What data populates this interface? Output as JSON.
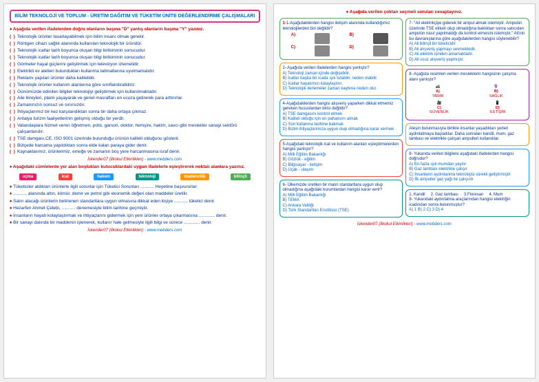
{
  "title": "BİLİM TEKNOLOJİ VE TOPLUM - ÜRETİM DAĞITIM VE TÜKETİM ÜNİTE DEĞERLENDİRME ÇALIŞMALARI",
  "footer_author": "İskender07 (İlkokul Etkinlikleri) -",
  "footer_link": "www.mebders.com",
  "tf_head": "Aşağıda verilen ifadelerden doğru olanların başına \"D\" yanlış olanların başına \"Y\" yazınız.",
  "tf": [
    "Teknolojik ürünler tasarlayabilmek için bilim insanı olmak gerekir.",
    "Röntgen cihazı sağlık alanında kullanılan teknolojik bir üründür.",
    "Teknolojik icatlar tarih boyunca oluşan bilgi birikiminin sonucudur.",
    "Teknolojik icatlar tarih boyunca oluşan bilgi birikiminin sonucudur.",
    "Görmeler hayal güçlerini geliştirmek için televizyon izlemelidir.",
    "Elektrikli ev aletleri bulundukları kullanma talimatlarına uyulmamalıdır.",
    "Reklamı yapılan ürünler daha kalitelidir.",
    "Teknolojik ürünler kullanım alanlarına göre sınıflandırabiliriz.",
    "Günümüzde edinilen bilgiler teknolojiyi geliştirmek için kullanılmaktadır.",
    "Aile bireyleri, planlı yaşayarak ve genel masrafları en ucuza getirerek para arttırırlar.",
    "Zamanınızın sonsuz ve sınırsızdır.",
    "İhtiyaçlarımız bir kez karşılandıktan sonra bir daha ortaya çıkmaz.",
    "Antalya turizm faaliyetlerinin gelişmiş olduğu bir yerdir.",
    "Vatandaşlara hizmet veren öğretmen, polis, garson, doktor, hemşire, hakim, savcı gibi meslekler sanayi sektörü çalışanlarıdır.",
    "TSE damgası,CE, ISO 9001 üzerinde bulunduğu ürünün kaliteli olduğunu gösterir.",
    "Bütçede harcama yapıldıktan sonra elde kalan paraya gider denir.",
    "Kaynaklarımız, ürünlerimiz, emeğe ve zamanın boş yere harcanmasına  israf  denir."
  ],
  "fill_head": "Aşağıdaki cümlelerde yer alan boşlukları kutucuklardaki uygun ifadelerle eşleştirerek noktalı alanlara yazınız.",
  "words": [
    "uçma",
    "icat",
    "hakem",
    "teknoloji",
    "madencilik",
    "bilinçli"
  ],
  "fills": [
    "Tüketiciler aldıkları ürünlerle ilgili sorunlar için Tüketici Sorunları ........... Heyetine başvururlar.",
    "........... alanında altın, kömür, demir ve petrol gibi ekonomik değeri olan maddeler üretilir.",
    "Satın alacağı ürünlerin belirlenen standartlara uygun olmasına dikkat eden kişiye ........... tüketici denir.",
    "Hezarfen Ahmet Çelebi, ........... denemesiyle bilim tarihine geçmiştir.",
    "İnsanların hayatı kolaylaştırmak ve ihtiyaçlarını gidermek için yeni ürünler ortaya çıkarmasına ............. denir.",
    "Bir sanayi dalında bir maddenin işlenerek,  kullanır hale gelmesiyle ilgili bilgi ve sürece ............. denir."
  ],
  "page2_head": "Aşağıda verilen çoktan seçmeli soruları cevaplayınız.",
  "q1": {
    "stem": "1-Aşağıdakilerden hangisi iletişim alanında kullandığımız teknolojilerden biri değildir?"
  },
  "q2": {
    "stem": "2- Aşağıda verilen ifadelerden hangisi yanlıştır?",
    "opts": [
      "A) Teknoloji zaman içinde değişebilir.",
      "B) İcatlar  başka bir icada ışık tutabilir, neden olabilir.",
      "C) İcatlar hayatımızı kolaylaştırır.",
      "D) Teknolojik ilerlemeler zaman kaybına neden olur."
    ]
  },
  "q3": {
    "stem": "4-Aşağıdakilerden hangisi alışveriş yaparken dikkat etmemiz gereken hususlardan birisi değildir?",
    "opts": [
      "A) TSE damgasını kontrol etmek",
      "B) Kaliteli olduğu için en pahalısını almak",
      "C) Son kullanma tarihine bakmak",
      "D) Bizim ihtiyaçlarımıza uygun olup olmadığına karar  vermek"
    ]
  },
  "q4": {
    "stem": "5-Aşağıdaki teknolojik icat ve kullanım alanları eşleştirmelerden hangisi yanlıştır?",
    "opts": [
      "A) Milli Eğitim Bakanlığı",
      "B) Gözlük - eğitim",
      "C) Bilgisayar  - iletişim",
      "D) Uçak - ulaşım"
    ]
  },
  "q5": {
    "stem": "6- Ülkemizde üretilen bir malın standartlara uygun olup olmadığına aşağıdaki kurumlardan hangisi karar verir?",
    "opts": [
      "A) Milli Eğitim Bakanlığı",
      "B) TEMA",
      "C) Ankara Valiliği",
      "D) Türk Standartları Enstitüsü (TSE)"
    ]
  },
  "q6": {
    "stem": "7- \"Ali elektrikçiye giderek bir ampul almak istemiştir. Ampulün üzerinde TSE etiketi olup olmadığına baktıktan sonra satıcıdan ampulün nasıl yapılmadığı da kontrol etmesini istemiştir.\" Ali'nin bu davranışlarına göre aşağıdakilerden hangisi söylenebilir?",
    "opts": [
      "A) Ali bilinçli bir tüketicidir.",
      "B) Ali alışveriş yapmayı sevmektedir.",
      "C) Ali elektrik işinden anlamaktadır.",
      "D) Ali ucuz alışveriş yapmıştır."
    ]
  },
  "q7": {
    "stem": "8- Aşağıda resimleri verilen mesleklerin hangisinin çalışma alanı yanlıştır?"
  },
  "jobs": [
    "TARIM",
    "SAĞLIK",
    "GÜVENLİK",
    "İLETİŞİM"
  ],
  "intro": "Ateşin bulunmasıyla birlikte insanlar yaşadıkları yerleri aydınlatmaya başladılar. Daha sonraları kandil, mum, gaz lambası ve elektrikle çalışan ampulleri kullandılar.",
  "q8": {
    "stem": "8- Yukarıda verilen bilgilere aşağıdaki ifadelerden hangisi doğrudur?",
    "opts": [
      "A) En fazla ışık mumdan yayılır",
      "B) Gaz lambası elektrikle çalışır",
      "C) İnsanların aydınlanma teknolojisi sürekli geliştirmiştir",
      "D) İlk ampuller gaz yağı ile çalışırdı"
    ]
  },
  "q9list": [
    "1. Kandil",
    "2. Gaz lambası",
    "3.Floresan",
    "4. Mum"
  ],
  "q9": {
    "stem": "9- Yukarıdaki aydınlatma araçlarından hangisi elektriğin icadından sonra bulunmuştur?",
    "opts": "A) 1     B) 2     C) 3     D) 4"
  }
}
